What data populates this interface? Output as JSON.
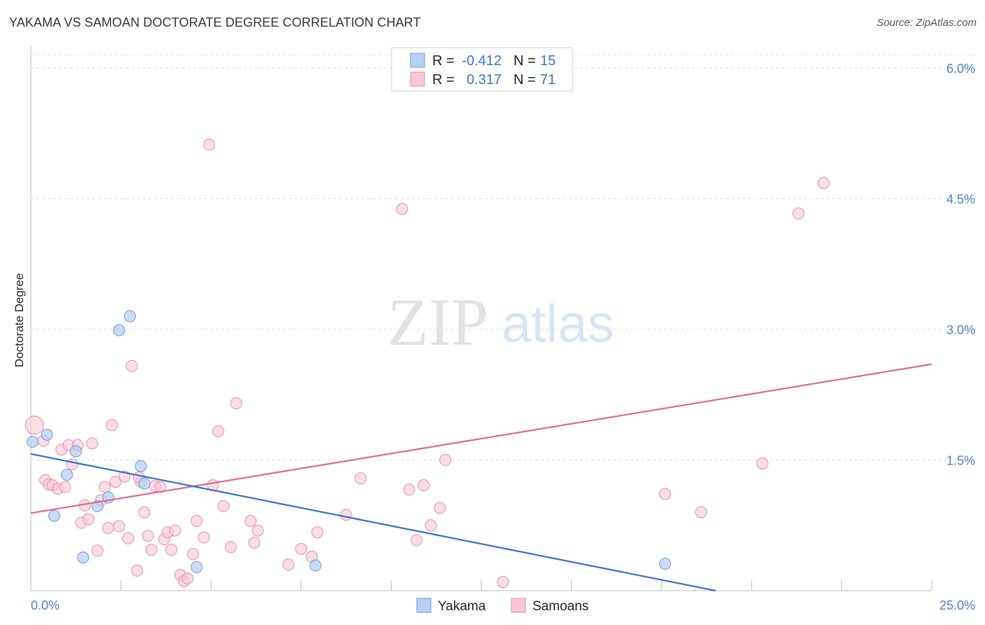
{
  "title": "YAKAMA VS SAMOAN DOCTORATE DEGREE CORRELATION CHART",
  "source": "Source: ZipAtlas.com",
  "watermark": {
    "zip": "ZIP",
    "atlas": "atlas"
  },
  "colors": {
    "yakama_fill": "#b8d0f2",
    "yakama_stroke": "#6e9ad8",
    "yakama_line": "#2f6fcf",
    "samoan_fill": "#f8c6d5",
    "samoan_stroke": "#e88ea9",
    "samoan_line": "#e06892",
    "tick_text": "#4a7fd1",
    "grid": "#dddddd"
  },
  "legend": {
    "rows": [
      {
        "series": "Yakama",
        "r_label": "R =",
        "r_value": "-0.412",
        "n_label": "N =",
        "n_value": "15"
      },
      {
        "series": "Samoans",
        "r_label": "R =",
        "r_value": "0.317",
        "n_label": "N =",
        "n_value": "71"
      }
    ]
  },
  "chart_data": {
    "type": "scatter",
    "title": "YAKAMA VS SAMOAN DOCTORATE DEGREE CORRELATION CHART",
    "xlabel": "",
    "ylabel": "Doctorate Degree",
    "xlim": [
      0,
      25
    ],
    "ylim": [
      0,
      6.2
    ],
    "x_tick_labels": [
      "0.0%",
      "25.0%"
    ],
    "y_ticks": [
      1.5,
      3.0,
      4.5,
      6.0
    ],
    "y_tick_labels": [
      "1.5%",
      "3.0%",
      "4.5%",
      "6.0%"
    ],
    "grid": true,
    "legend_position": "top-center",
    "series": [
      {
        "name": "Yakama",
        "R": -0.412,
        "N": 15,
        "trend": {
          "x": [
            0,
            19.0
          ],
          "y": [
            1.57,
            0.0
          ]
        },
        "points": [
          {
            "x": 0.05,
            "y": 1.71
          },
          {
            "x": 0.45,
            "y": 1.79
          },
          {
            "x": 0.65,
            "y": 0.86
          },
          {
            "x": 1.0,
            "y": 1.33
          },
          {
            "x": 1.25,
            "y": 1.6
          },
          {
            "x": 1.45,
            "y": 0.38
          },
          {
            "x": 1.85,
            "y": 0.97
          },
          {
            "x": 2.15,
            "y": 1.07
          },
          {
            "x": 2.45,
            "y": 2.99
          },
          {
            "x": 2.75,
            "y": 3.15
          },
          {
            "x": 3.05,
            "y": 1.43
          },
          {
            "x": 3.15,
            "y": 1.23
          },
          {
            "x": 4.6,
            "y": 0.27
          },
          {
            "x": 7.9,
            "y": 0.29
          },
          {
            "x": 17.6,
            "y": 0.31
          }
        ]
      },
      {
        "name": "Samoans",
        "R": 0.317,
        "N": 71,
        "trend": {
          "x": [
            0,
            25
          ],
          "y": [
            0.89,
            2.6
          ]
        },
        "points": [
          {
            "x": 0.1,
            "y": 1.9,
            "size": "large"
          },
          {
            "x": 0.35,
            "y": 1.72
          },
          {
            "x": 0.4,
            "y": 1.27
          },
          {
            "x": 0.5,
            "y": 1.22
          },
          {
            "x": 0.6,
            "y": 1.21
          },
          {
            "x": 0.75,
            "y": 1.17
          },
          {
            "x": 0.85,
            "y": 1.62
          },
          {
            "x": 0.95,
            "y": 1.19
          },
          {
            "x": 1.05,
            "y": 1.67
          },
          {
            "x": 1.15,
            "y": 1.45
          },
          {
            "x": 1.3,
            "y": 1.67
          },
          {
            "x": 1.4,
            "y": 0.78
          },
          {
            "x": 1.5,
            "y": 0.98
          },
          {
            "x": 1.6,
            "y": 0.82
          },
          {
            "x": 1.7,
            "y": 1.69
          },
          {
            "x": 1.85,
            "y": 0.46
          },
          {
            "x": 1.95,
            "y": 1.04
          },
          {
            "x": 2.05,
            "y": 1.19
          },
          {
            "x": 2.15,
            "y": 0.72
          },
          {
            "x": 2.25,
            "y": 1.9
          },
          {
            "x": 2.35,
            "y": 1.25
          },
          {
            "x": 2.45,
            "y": 0.74
          },
          {
            "x": 2.6,
            "y": 1.31
          },
          {
            "x": 2.7,
            "y": 0.6
          },
          {
            "x": 2.8,
            "y": 2.58
          },
          {
            "x": 2.95,
            "y": 0.23
          },
          {
            "x": 3.05,
            "y": 1.25
          },
          {
            "x": 3.15,
            "y": 0.9
          },
          {
            "x": 3.25,
            "y": 0.63
          },
          {
            "x": 3.35,
            "y": 0.47
          },
          {
            "x": 3.45,
            "y": 1.2
          },
          {
            "x": 3.6,
            "y": 1.19
          },
          {
            "x": 3.7,
            "y": 0.59
          },
          {
            "x": 3.8,
            "y": 0.67
          },
          {
            "x": 3.9,
            "y": 0.47
          },
          {
            "x": 4.0,
            "y": 0.69
          },
          {
            "x": 4.15,
            "y": 0.18
          },
          {
            "x": 4.25,
            "y": 0.11
          },
          {
            "x": 4.35,
            "y": 0.14
          },
          {
            "x": 4.5,
            "y": 0.42
          },
          {
            "x": 4.6,
            "y": 0.8
          },
          {
            "x": 4.8,
            "y": 0.61
          },
          {
            "x": 4.95,
            "y": 5.12
          },
          {
            "x": 5.05,
            "y": 1.21
          },
          {
            "x": 5.2,
            "y": 1.83
          },
          {
            "x": 5.35,
            "y": 0.97
          },
          {
            "x": 5.55,
            "y": 0.5
          },
          {
            "x": 5.7,
            "y": 2.15
          },
          {
            "x": 6.1,
            "y": 0.8
          },
          {
            "x": 6.3,
            "y": 0.69
          },
          {
            "x": 7.15,
            "y": 0.3
          },
          {
            "x": 7.5,
            "y": 0.48
          },
          {
            "x": 7.8,
            "y": 0.39
          },
          {
            "x": 7.95,
            "y": 0.67
          },
          {
            "x": 8.75,
            "y": 0.87
          },
          {
            "x": 9.15,
            "y": 1.29
          },
          {
            "x": 10.3,
            "y": 4.38
          },
          {
            "x": 10.5,
            "y": 1.16
          },
          {
            "x": 10.7,
            "y": 0.58
          },
          {
            "x": 10.9,
            "y": 1.21
          },
          {
            "x": 11.1,
            "y": 0.75
          },
          {
            "x": 11.35,
            "y": 0.95
          },
          {
            "x": 11.5,
            "y": 1.5
          },
          {
            "x": 13.1,
            "y": 0.1
          },
          {
            "x": 17.6,
            "y": 1.11
          },
          {
            "x": 18.6,
            "y": 0.9
          },
          {
            "x": 20.3,
            "y": 1.46
          },
          {
            "x": 21.3,
            "y": 4.33
          },
          {
            "x": 22.0,
            "y": 4.68
          },
          {
            "x": 6.2,
            "y": 0.55
          },
          {
            "x": 3.0,
            "y": 1.3
          }
        ]
      }
    ]
  },
  "bottom_legend": [
    "Yakama",
    "Samoans"
  ]
}
